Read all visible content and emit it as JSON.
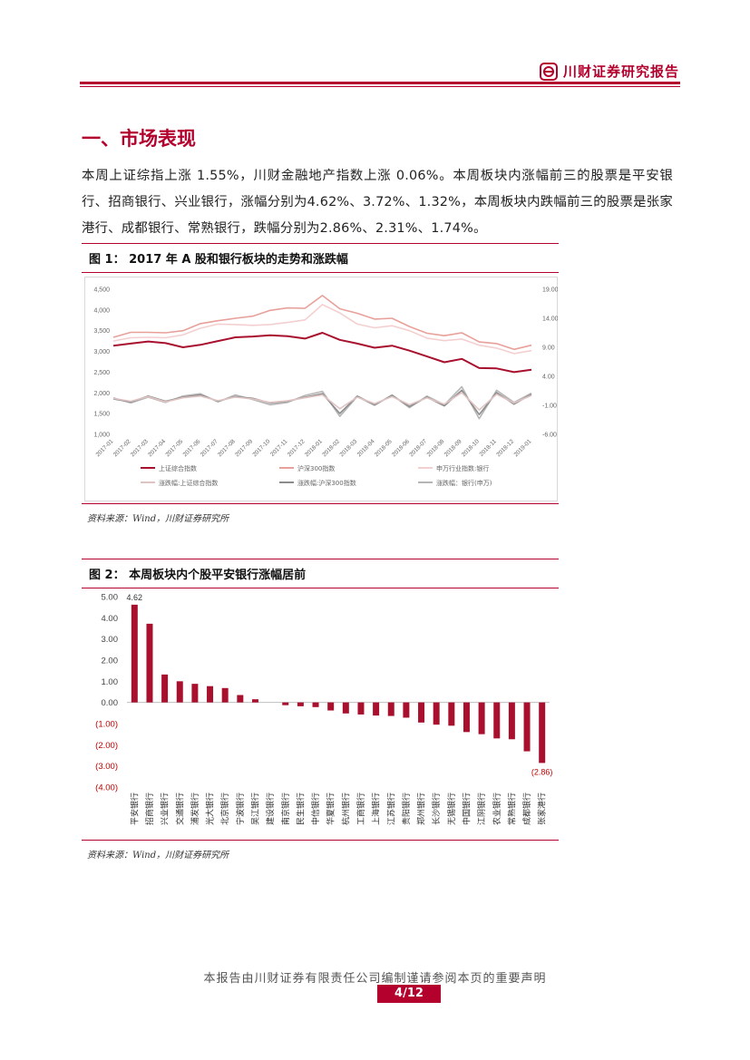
{
  "header": {
    "brand": "川财证券研究报告"
  },
  "section": {
    "title": "一、市场表现",
    "body": "本周上证综指上涨 1.55%，川财金融地产指数上涨 0.06%。本周板块内涨幅前三的股票是平安银行、招商银行、兴业银行，涨幅分别为4.62%、3.72%、1.32%，本周板块内跌幅前三的股票是张家港行、成都银行、常熟银行，跌幅分别为2.86%、2.31%、1.74%。"
  },
  "figure1": {
    "title": "图 1：  2017 年 A 股和银行板块的走势和涨跌幅",
    "source": "资料来源：Wind，川财证券研究所",
    "chart_data": {
      "type": "line",
      "y_left_ticks": [
        "4,500",
        "4,000",
        "3,500",
        "3,000",
        "2,500",
        "2,000",
        "1,500",
        "1,000"
      ],
      "y_left_range": [
        1000,
        4500
      ],
      "y_right_ticks": [
        "19.00",
        "14.00",
        "9.00",
        "4.00",
        "-1.00",
        "-6.00"
      ],
      "y_right_range": [
        -6,
        19
      ],
      "x_ticks": [
        "2017-01",
        "2017-02",
        "2017-03",
        "2017-04",
        "2017-05",
        "2017-06",
        "2017-07",
        "2017-08",
        "2017-09",
        "2017-10",
        "2017-11",
        "2017-12",
        "2018-01",
        "2018-02",
        "2018-03",
        "2018-04",
        "2018-05",
        "2018-06",
        "2018-07",
        "2018-08",
        "2018-09",
        "2018-10",
        "2018-11",
        "2018-12",
        "2019-01"
      ],
      "legend": [
        "上证综合指数",
        "沪深300指数",
        "申万行业指数:银行",
        "涨跌幅:上证综合指数",
        "涨跌幅:沪深300指数",
        "涨跌幅：银行(申万)"
      ],
      "series": [
        {
          "name": "上证综合指数",
          "axis": "left",
          "color": "#a8102e",
          "values": [
            3140,
            3190,
            3240,
            3200,
            3100,
            3160,
            3250,
            3340,
            3360,
            3390,
            3370,
            3310,
            3450,
            3280,
            3190,
            3090,
            3140,
            3020,
            2880,
            2740,
            2820,
            2600,
            2590,
            2500,
            2560
          ]
        },
        {
          "name": "沪深300指数",
          "axis": "left",
          "color": "#e8a09a",
          "values": [
            3340,
            3460,
            3460,
            3450,
            3500,
            3670,
            3740,
            3800,
            3850,
            3990,
            4050,
            4040,
            4350,
            4030,
            3920,
            3780,
            3800,
            3600,
            3440,
            3380,
            3450,
            3230,
            3190,
            3050,
            3150
          ]
        },
        {
          "name": "申万行业指数:银行",
          "axis": "left",
          "color": "#f4cfd0",
          "values": [
            3250,
            3330,
            3340,
            3330,
            3400,
            3560,
            3660,
            3650,
            3630,
            3650,
            3700,
            3760,
            4130,
            3930,
            3660,
            3570,
            3620,
            3500,
            3320,
            3260,
            3300,
            3150,
            3080,
            2950,
            3020
          ]
        },
        {
          "name": "涨跌幅:上证综合指数",
          "axis": "right",
          "color": "#e0c4c4",
          "values": [
            0.2,
            -0.3,
            0.5,
            -0.4,
            0.3,
            0.6,
            -0.2,
            0.4,
            0.1,
            -0.5,
            -0.2,
            0.3,
            0.8,
            -1.6,
            0.4,
            -0.7,
            0.5,
            -0.9,
            0.3,
            -0.8,
            1.2,
            -1.8,
            0.9,
            -0.6,
            0.7
          ]
        },
        {
          "name": "涨跌幅:沪深300指数",
          "axis": "right",
          "color": "#8c8c8c",
          "values": [
            0.1,
            -0.4,
            0.6,
            -0.3,
            0.4,
            0.8,
            -0.3,
            0.5,
            0.2,
            -0.6,
            -0.3,
            0.4,
            1.0,
            -2.4,
            0.6,
            -0.9,
            0.7,
            -1.2,
            0.4,
            -1.1,
            1.6,
            -2.6,
            1.2,
            -0.8,
            0.9
          ]
        },
        {
          "name": "涨跌幅：银行(申万)",
          "axis": "right",
          "color": "#b5b5b5",
          "values": [
            0.3,
            -0.6,
            0.4,
            -0.5,
            0.6,
            1.0,
            -0.4,
            0.8,
            0.0,
            -0.9,
            -0.5,
            0.7,
            1.4,
            -2.9,
            0.5,
            -1.0,
            0.8,
            -1.4,
            0.6,
            -0.9,
            2.2,
            -3.3,
            1.6,
            -0.5,
            1.1
          ]
        }
      ]
    }
  },
  "figure2": {
    "title": "图 2：  本周板块内个股平安银行涨幅居前",
    "source": "资料来源：Wind，川财证券研究所",
    "chart_data": {
      "type": "bar",
      "y_ticks": [
        "5.00",
        "4.00",
        "3.00",
        "2.00",
        "1.00",
        "0.00",
        "(1.00)",
        "(2.00)",
        "(3.00)",
        "(4.00)"
      ],
      "ylim": [
        -4,
        5
      ],
      "bar_color": "#a8102e",
      "categories": [
        "平安银行",
        "招商银行",
        "兴业银行",
        "交通银行",
        "浦发银行",
        "光大银行",
        "北京银行",
        "宁波银行",
        "吴江银行",
        "建设银行",
        "南京银行",
        "民生银行",
        "中信银行",
        "华夏银行",
        "杭州银行",
        "工商银行",
        "上海银行",
        "江苏银行",
        "贵阳银行",
        "郑州银行",
        "长沙银行",
        "无锡银行",
        "中国银行",
        "江阴银行",
        "农业银行",
        "常熟银行",
        "成都银行",
        "张家港行"
      ],
      "values": [
        4.62,
        3.72,
        1.32,
        1.0,
        0.88,
        0.77,
        0.68,
        0.35,
        0.15,
        0.0,
        -0.13,
        -0.18,
        -0.22,
        -0.38,
        -0.52,
        -0.57,
        -0.62,
        -0.64,
        -0.72,
        -0.95,
        -1.05,
        -1.1,
        -1.4,
        -1.5,
        -1.7,
        -1.74,
        -2.31,
        -2.86
      ],
      "data_labels": {
        "max": "4.62",
        "min": "(2.86)"
      }
    }
  },
  "footer": {
    "disclaimer": "本报告由川财证券有限责任公司编制谨请参阅本页的重要声明",
    "page": "4/12"
  }
}
